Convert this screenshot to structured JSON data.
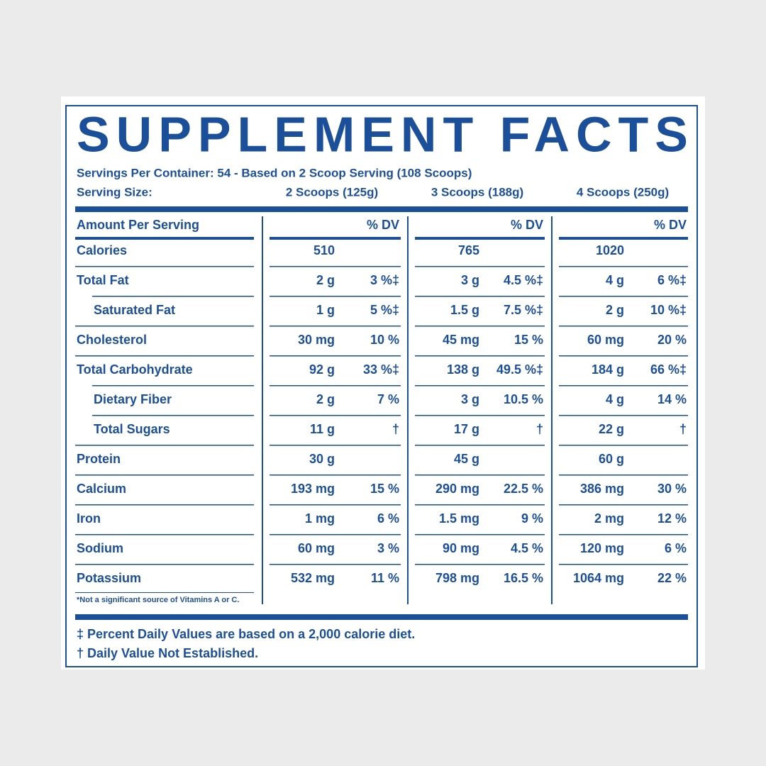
{
  "title": "SUPPLEMENT FACTS",
  "servings_per_container": "Servings Per Container: 54 - Based on 2 Scoop Serving (108 Scoops)",
  "serving_size": {
    "label": "Serving Size:",
    "columns": [
      "2 Scoops (125g)",
      "3 Scoops (188g)",
      "4 Scoops (250g)"
    ]
  },
  "table": {
    "header": {
      "label": "Amount Per Serving",
      "dv": [
        "% DV",
        "% DV",
        "% DV"
      ]
    },
    "rows": [
      {
        "label": "Calories",
        "indent": false,
        "values": [
          {
            "amount": "510"
          },
          {
            "amount": "765"
          },
          {
            "amount": "1020"
          }
        ]
      },
      {
        "label": "Total Fat",
        "indent": false,
        "values": [
          {
            "amount": "2 g",
            "dv": "3 %‡"
          },
          {
            "amount": "3 g",
            "dv": "4.5 %‡"
          },
          {
            "amount": "4 g",
            "dv": "6 %‡"
          }
        ]
      },
      {
        "label": "Saturated Fat",
        "indent": true,
        "values": [
          {
            "amount": "1 g",
            "dv": "5 %‡"
          },
          {
            "amount": "1.5 g",
            "dv": "7.5 %‡"
          },
          {
            "amount": "2 g",
            "dv": "10 %‡"
          }
        ]
      },
      {
        "label": "Cholesterol",
        "indent": false,
        "values": [
          {
            "amount": "30 mg",
            "dv": "10 %"
          },
          {
            "amount": "45 mg",
            "dv": "15 %"
          },
          {
            "amount": "60 mg",
            "dv": "20 %"
          }
        ]
      },
      {
        "label": "Total Carbohydrate",
        "indent": false,
        "values": [
          {
            "amount": "92 g",
            "dv": "33 %‡"
          },
          {
            "amount": "138 g",
            "dv": "49.5 %‡"
          },
          {
            "amount": "184 g",
            "dv": "66 %‡"
          }
        ]
      },
      {
        "label": "Dietary Fiber",
        "indent": true,
        "values": [
          {
            "amount": "2 g",
            "dv": "7 %"
          },
          {
            "amount": "3 g",
            "dv": "10.5 %"
          },
          {
            "amount": "4 g",
            "dv": "14 %"
          }
        ]
      },
      {
        "label": "Total Sugars",
        "indent": true,
        "values": [
          {
            "amount": "11 g",
            "dv": "†"
          },
          {
            "amount": "17 g",
            "dv": "†"
          },
          {
            "amount": "22 g",
            "dv": "†"
          }
        ]
      },
      {
        "label": "Protein",
        "indent": false,
        "values": [
          {
            "amount": "30 g"
          },
          {
            "amount": "45 g"
          },
          {
            "amount": "60 g"
          }
        ]
      },
      {
        "label": "Calcium",
        "indent": false,
        "values": [
          {
            "amount": "193 mg",
            "dv": "15 %"
          },
          {
            "amount": "290 mg",
            "dv": "22.5 %"
          },
          {
            "amount": "386 mg",
            "dv": "30 %"
          }
        ]
      },
      {
        "label": "Iron",
        "indent": false,
        "values": [
          {
            "amount": "1 mg",
            "dv": "6 %"
          },
          {
            "amount": "1.5 mg",
            "dv": "9 %"
          },
          {
            "amount": "2 mg",
            "dv": "12 %"
          }
        ]
      },
      {
        "label": "Sodium",
        "indent": false,
        "values": [
          {
            "amount": "60 mg",
            "dv": "3 %"
          },
          {
            "amount": "90 mg",
            "dv": "4.5 %"
          },
          {
            "amount": "120 mg",
            "dv": "6 %"
          }
        ]
      },
      {
        "label": "Potassium",
        "indent": false,
        "values": [
          {
            "amount": "532 mg",
            "dv": "11 %"
          },
          {
            "amount": "798 mg",
            "dv": "16.5 %"
          },
          {
            "amount": "1064 mg",
            "dv": "22 %"
          }
        ]
      }
    ],
    "note": "*Not a significant source of Vitamins A or C."
  },
  "footnotes": [
    "‡ Percent Daily Values are based on a 2,000 calorie diet.",
    "† Daily Value Not Established."
  ]
}
